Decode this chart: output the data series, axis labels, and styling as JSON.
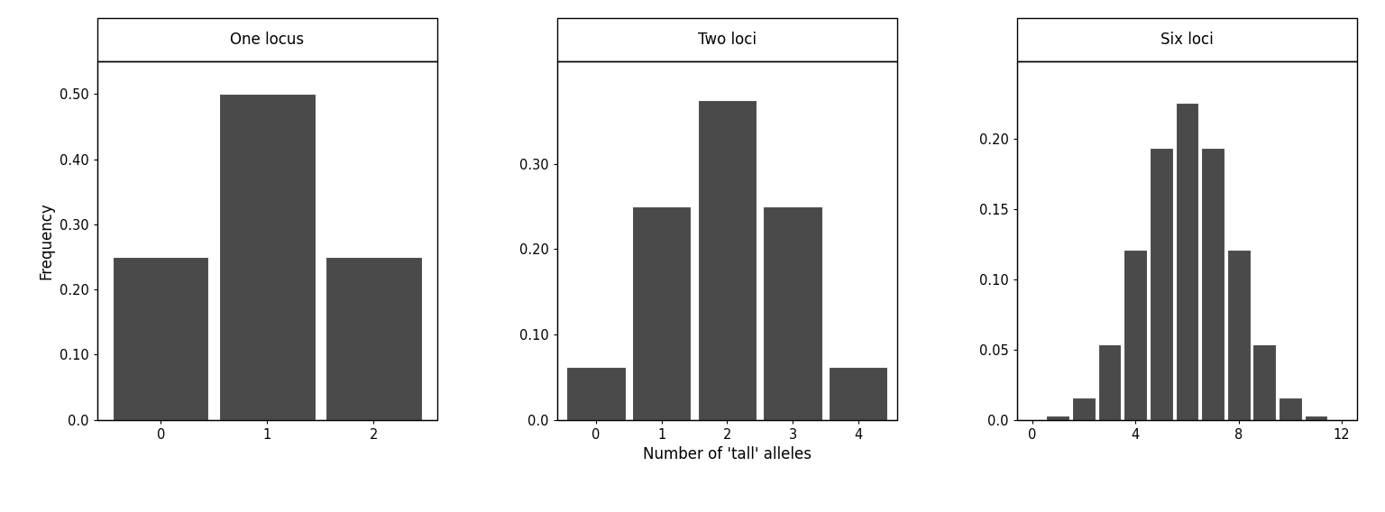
{
  "panels": [
    {
      "title": "One locus",
      "x": [
        0,
        1,
        2
      ],
      "y": [
        0.25,
        0.5,
        0.25
      ],
      "xlim": [
        -0.6,
        2.6
      ],
      "ylim": [
        0,
        0.55
      ],
      "yticks": [
        0.0,
        0.1,
        0.2,
        0.3,
        0.4,
        0.5
      ],
      "xticks": [
        0,
        1,
        2
      ],
      "show_ylabel": true
    },
    {
      "title": "Two loci",
      "x": [
        0,
        1,
        2,
        3,
        4
      ],
      "y": [
        0.0625,
        0.25,
        0.375,
        0.25,
        0.0625
      ],
      "xlim": [
        -0.6,
        4.6
      ],
      "ylim": [
        0,
        0.42
      ],
      "yticks": [
        0.0,
        0.1,
        0.2,
        0.3
      ],
      "xticks": [
        0,
        1,
        2,
        3,
        4
      ],
      "show_ylabel": false
    },
    {
      "title": "Six loci",
      "x": [
        0,
        1,
        2,
        3,
        4,
        5,
        6,
        7,
        8,
        9,
        10,
        11,
        12
      ],
      "y": [
        0.000244,
        0.00293,
        0.016113,
        0.053711,
        0.12085,
        0.193359,
        0.225586,
        0.193359,
        0.12085,
        0.053711,
        0.016113,
        0.00293,
        0.000244
      ],
      "xlim": [
        -0.6,
        12.6
      ],
      "ylim": [
        0,
        0.255
      ],
      "yticks": [
        0.0,
        0.05,
        0.1,
        0.15,
        0.2
      ],
      "xticks": [
        0,
        4,
        8,
        12
      ],
      "show_ylabel": false
    }
  ],
  "xlabel": "Number of 'tall' alleles",
  "bar_color": "#4a4a4a",
  "bar_edgecolor": "white",
  "bg_color": "white",
  "title_fontsize": 12,
  "label_fontsize": 12,
  "tick_fontsize": 10.5,
  "fig_width": 15.36,
  "fig_height": 5.68
}
